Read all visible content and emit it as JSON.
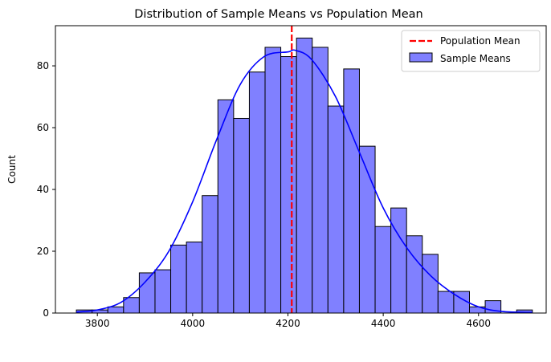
{
  "chart_data": {
    "type": "histogram",
    "title": "Distribution of Sample Means vs Population Mean",
    "xlabel": "",
    "ylabel": "Count",
    "xlim": [
      3712,
      4742
    ],
    "ylim": [
      0,
      93
    ],
    "x_ticks": [
      3800,
      4000,
      4200,
      4400,
      4600
    ],
    "y_ticks": [
      0,
      20,
      40,
      60,
      80
    ],
    "grid": false,
    "legend_position": "top-right",
    "bins": {
      "left_edges": [
        3756,
        3789,
        3822,
        3855,
        3888,
        3921,
        3954,
        3987,
        4020,
        4053,
        4086,
        4119,
        4152,
        4185,
        4218,
        4251,
        4284,
        4317,
        4350,
        4383,
        4416,
        4449,
        4482,
        4515,
        4548,
        4581,
        4614,
        4647,
        4680
      ],
      "width": 33,
      "counts": [
        1,
        1,
        2,
        5,
        13,
        14,
        22,
        23,
        38,
        69,
        63,
        78,
        86,
        83,
        89,
        86,
        67,
        79,
        54,
        28,
        34,
        25,
        19,
        7,
        7,
        2,
        4,
        0,
        1
      ]
    },
    "kde": {
      "x": [
        3756,
        3800,
        3850,
        3900,
        3950,
        4000,
        4050,
        4100,
        4150,
        4200,
        4216,
        4250,
        4300,
        4350,
        4400,
        4450,
        4500,
        4550,
        4600,
        4650,
        4713
      ],
      "y": [
        0.3,
        1.0,
        3.5,
        10.0,
        20.0,
        36.0,
        56.0,
        74.0,
        83.0,
        84.5,
        85.0,
        82.0,
        70.0,
        52.0,
        34.0,
        21.0,
        12.0,
        6.0,
        2.0,
        0.5,
        0.2
      ]
    },
    "population_mean": 4208,
    "series": [
      {
        "name": "Population Mean",
        "color": "#ff0000",
        "style": "dashed-line"
      },
      {
        "name": "Sample Means",
        "color": "#8080ff",
        "edge_color": "#000000",
        "style": "bar"
      }
    ],
    "kde_color": "#0000ff"
  }
}
